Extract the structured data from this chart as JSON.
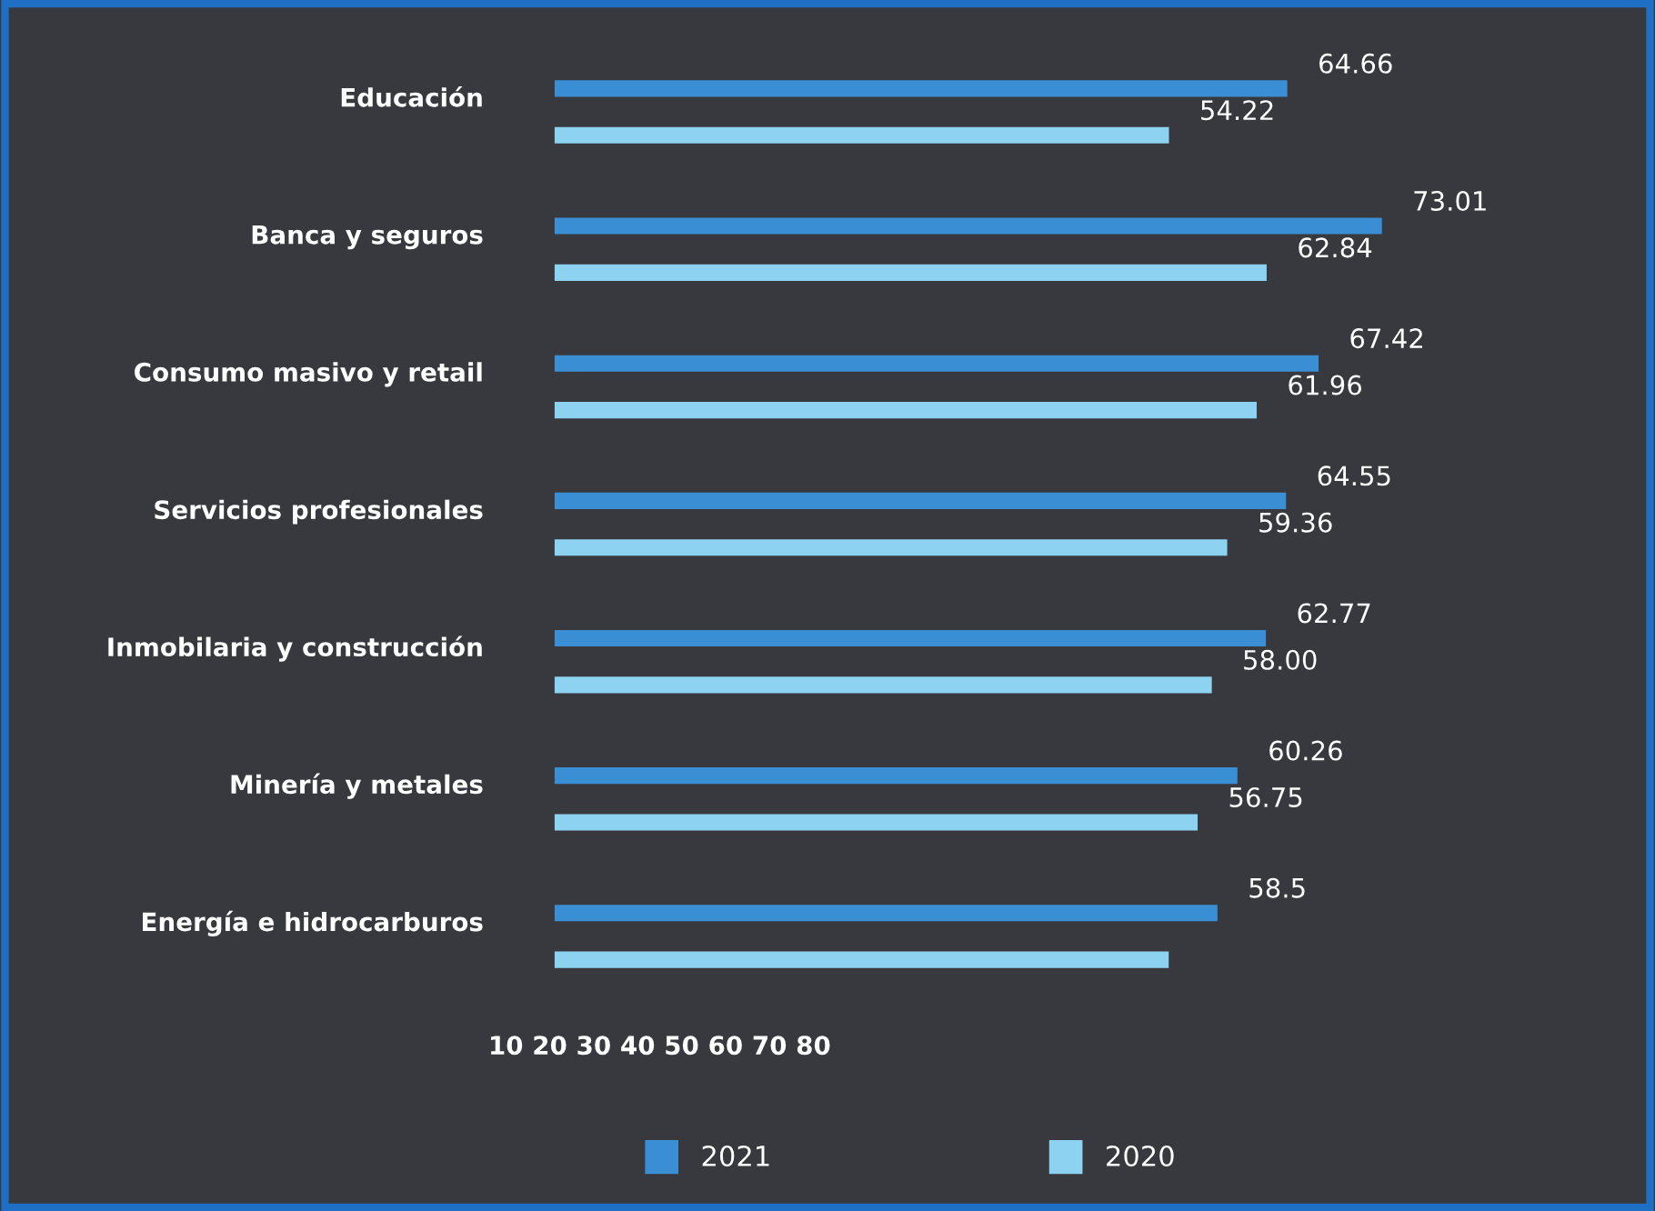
{
  "chart_data": {
    "type": "bar",
    "orientation": "horizontal",
    "categories": [
      "Educación",
      "Banca y seguros",
      "Consumo masivo y retail",
      "Servicios profesionales",
      "Inmobilaria y construcción",
      "Minería y metales",
      "Energía e hidrocarburos"
    ],
    "series": [
      {
        "name": "2021",
        "color": "#3a8fd4",
        "values": [
          64.66,
          73.01,
          67.42,
          64.55,
          62.77,
          60.26,
          58.5
        ],
        "value_labels": [
          "64.66",
          "73.01",
          "67.42",
          "64.55",
          "62.77",
          "60.26",
          "58.5"
        ]
      },
      {
        "name": "2020",
        "color": "#8dd2f0",
        "values": [
          54.22,
          62.84,
          61.96,
          59.36,
          58.0,
          56.75,
          54.2
        ],
        "value_labels": [
          "54.22",
          "62.84",
          "61.96",
          "59.36",
          "58.00",
          "56.75",
          null
        ]
      }
    ],
    "annotations": [
      "10 20 30 40 50 60 70 80"
    ],
    "legend": "bottom"
  }
}
